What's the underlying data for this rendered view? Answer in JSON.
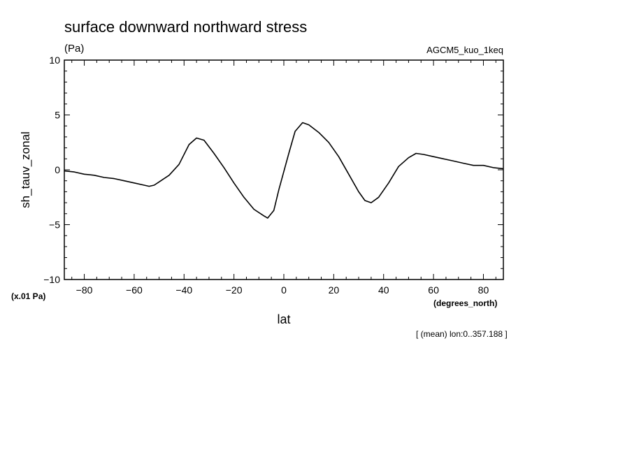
{
  "chart_data": {
    "type": "line",
    "title": "surface downward northward stress",
    "units": "(Pa)",
    "dataset": "AGCM5_kuo_1keq",
    "ylabel": "sh_tauv_zonal",
    "xlabel": "lat",
    "x_units": "(degrees_north)",
    "y_scale_note": "(x.01 Pa)",
    "footnote": "[ (mean) lon:0..357.188 ]",
    "xlim": [
      -88,
      88
    ],
    "ylim": [
      -10,
      10
    ],
    "x_ticks": [
      -80,
      -60,
      -40,
      -20,
      0,
      20,
      40,
      60,
      80
    ],
    "y_ticks": [
      -10,
      -5,
      0,
      5,
      10
    ],
    "grid": false,
    "line_color": "#000000",
    "series": [
      {
        "x": [
          -88,
          -84,
          -80,
          -76,
          -72,
          -68,
          -64,
          -60,
          -56,
          -54,
          -52,
          -50,
          -46,
          -42,
          -38,
          -35,
          -32,
          -28,
          -24,
          -20,
          -16,
          -12,
          -8,
          -6.5,
          -4,
          -2,
          2,
          4.5,
          7.5,
          10,
          14,
          18,
          22,
          26,
          30,
          32.5,
          35,
          38,
          42,
          46,
          50,
          53,
          56,
          60,
          64,
          68,
          72,
          76,
          80,
          84,
          88
        ],
        "y": [
          -0.1,
          -0.2,
          -0.4,
          -0.5,
          -0.7,
          -0.8,
          -1.0,
          -1.2,
          -1.4,
          -1.5,
          -1.4,
          -1.1,
          -0.5,
          0.5,
          2.3,
          2.9,
          2.7,
          1.5,
          0.2,
          -1.2,
          -2.5,
          -3.6,
          -4.2,
          -4.4,
          -3.7,
          -1.8,
          1.5,
          3.5,
          4.3,
          4.1,
          3.4,
          2.5,
          1.2,
          -0.4,
          -2.0,
          -2.8,
          -3.0,
          -2.5,
          -1.2,
          0.3,
          1.1,
          1.5,
          1.4,
          1.2,
          1.0,
          0.8,
          0.6,
          0.4,
          0.4,
          0.2,
          0.1
        ]
      }
    ]
  }
}
